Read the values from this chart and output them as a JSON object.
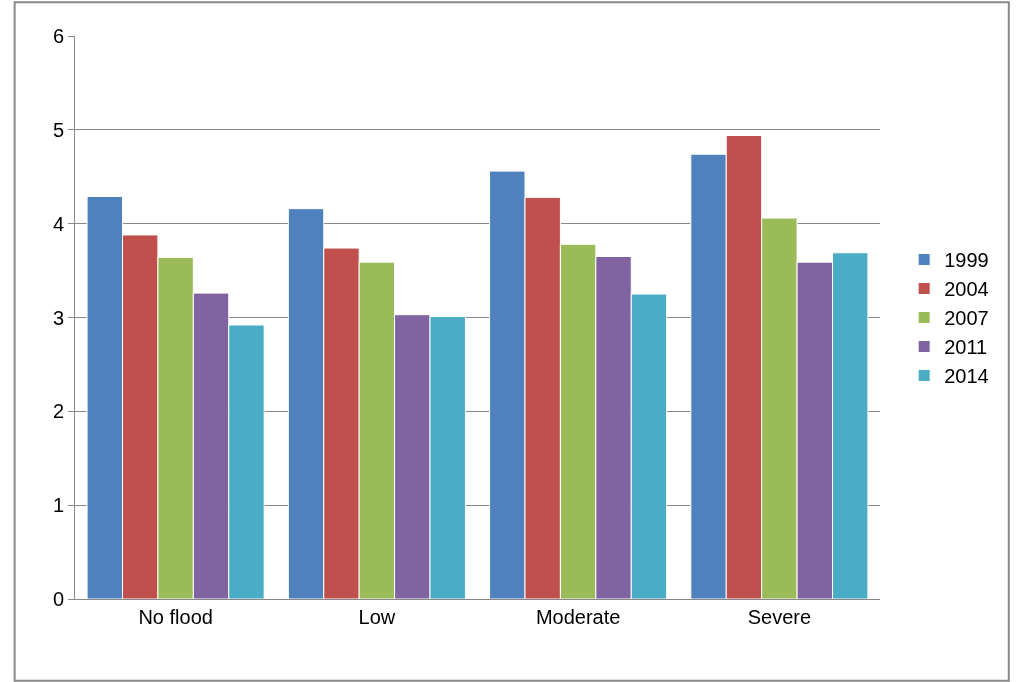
{
  "chart_data": {
    "type": "bar",
    "categories": [
      "No flood",
      "Low",
      "Moderate",
      "Severe"
    ],
    "series": [
      {
        "name": "1999",
        "color": "#4f81bd",
        "values": [
          4.29,
          4.16,
          4.56,
          4.74
        ]
      },
      {
        "name": "2004",
        "color": "#c0504d",
        "values": [
          3.88,
          3.74,
          4.28,
          4.94
        ]
      },
      {
        "name": "2007",
        "color": "#9bbb59",
        "values": [
          3.64,
          3.59,
          3.78,
          4.06
        ]
      },
      {
        "name": "2011",
        "color": "#8064a2",
        "values": [
          3.26,
          3.03,
          3.65,
          3.59
        ]
      },
      {
        "name": "2014",
        "color": "#4bacc6",
        "values": [
          2.92,
          3.01,
          3.25,
          3.69
        ]
      }
    ],
    "ylim": [
      0,
      6
    ],
    "yticks": [
      0,
      1,
      2,
      3,
      4,
      5,
      6
    ],
    "grid": "y",
    "legend": "right"
  }
}
